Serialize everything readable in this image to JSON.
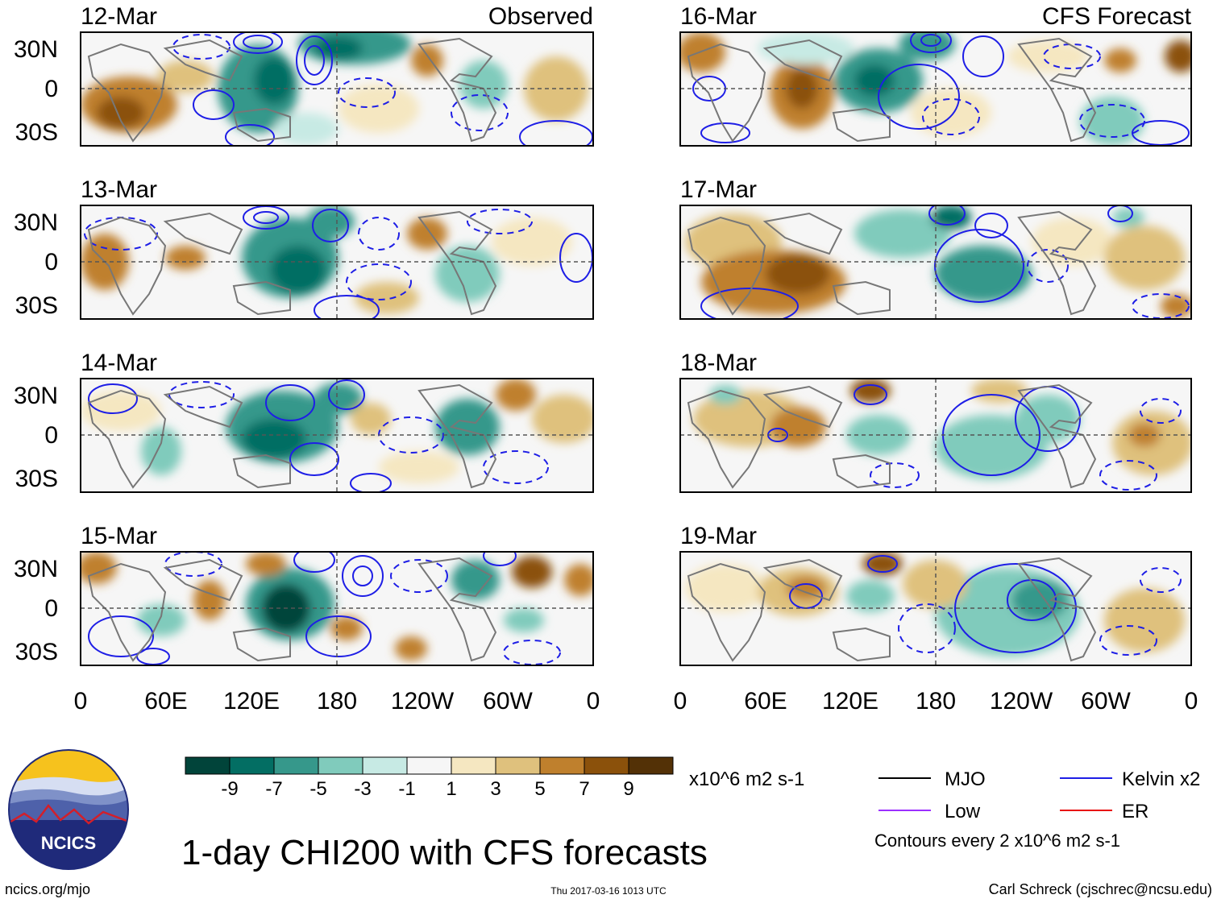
{
  "title": "1-day CHI200 with CFS forecasts",
  "columns": [
    {
      "tag": "Observed",
      "dates": [
        "12-Mar",
        "13-Mar",
        "14-Mar",
        "15-Mar"
      ]
    },
    {
      "tag": "CFS Forecast",
      "dates": [
        "16-Mar",
        "17-Mar",
        "18-Mar",
        "19-Mar"
      ]
    }
  ],
  "lat_labels": [
    "30N",
    "0",
    "30S"
  ],
  "lon_labels": [
    "0",
    "60E",
    "120E",
    "180",
    "120W",
    "60W",
    "0"
  ],
  "colorbar": {
    "units": "x10^6 m2 s-1",
    "labels": [
      "-9",
      "-7",
      "-5",
      "-3",
      "-1",
      "1",
      "3",
      "5",
      "7",
      "9"
    ],
    "colors": [
      "#01443a",
      "#036e63",
      "#36988b",
      "#80cbbc",
      "#c7eae4",
      "#f6f6f6",
      "#f5e7c1",
      "#dfc17d",
      "#bf802d",
      "#8b510b",
      "#533106"
    ]
  },
  "legend": {
    "items": [
      {
        "label": "MJO",
        "color": "#000000"
      },
      {
        "label": "Kelvin x2",
        "color": "#1e1ee6"
      },
      {
        "label": "Low",
        "color": "#9b30ff"
      },
      {
        "label": "ER",
        "color": "#e81010"
      }
    ],
    "contour_note": "Contours every 2 x10^6 m2 s-1"
  },
  "logo": {
    "text": "NCICS"
  },
  "footer": {
    "site": "ncics.org/mjo",
    "timestamp": "Thu 2017-03-16 1013 UTC",
    "author": "Carl Schreck (cjschrec@ncsu.edu)"
  }
}
